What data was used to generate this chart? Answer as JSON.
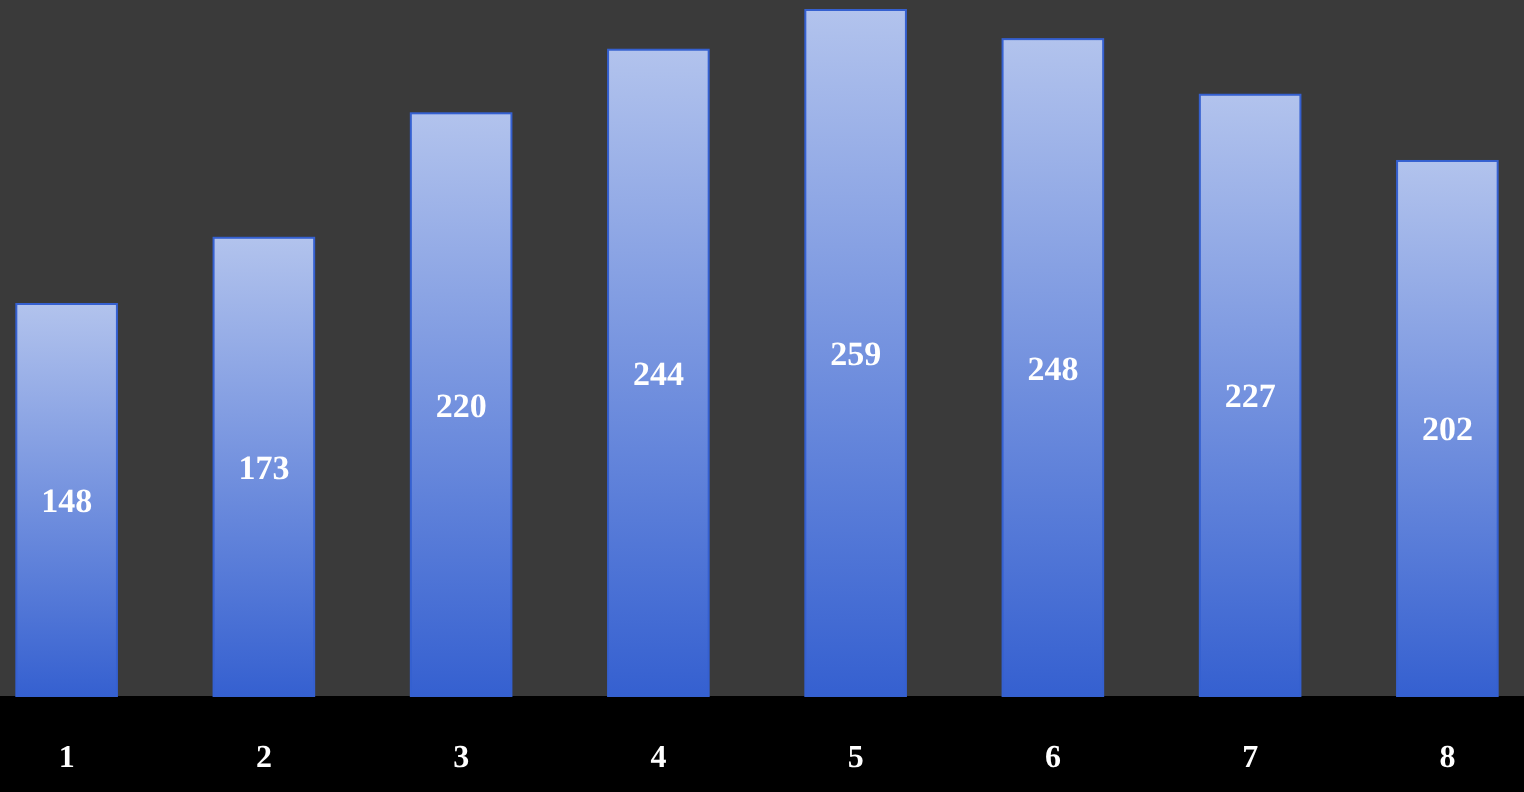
{
  "chart_data": {
    "type": "bar",
    "categories": [
      "1",
      "2",
      "3",
      "4",
      "5",
      "6",
      "7",
      "8"
    ],
    "values": [
      148,
      173,
      220,
      244,
      259,
      248,
      227,
      202
    ],
    "color": "#3560d0",
    "data_labels": true,
    "tick_labels": "x"
  }
}
